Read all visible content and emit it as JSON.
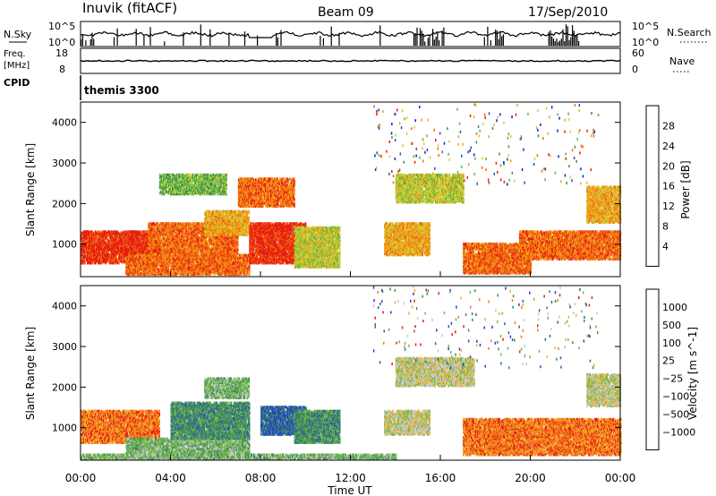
{
  "header": {
    "station": "Inuvik  (fitACF)",
    "beam": "Beam 09",
    "date": "17/Sep/2010"
  },
  "top_panels": {
    "nsky_label": "N.Sky",
    "nsearch_label": "N.Search",
    "nsky_ticks": [
      "10^5",
      "10^0"
    ],
    "nsearch_ticks": [
      "10^5",
      "10^0"
    ],
    "freq_label_1": "Freq.",
    "freq_label_2": "[MHz]",
    "freq_ticks": [
      "18",
      "8"
    ],
    "nave_label": "Nave",
    "nave_ticks": [
      "60",
      "0"
    ],
    "cpid_label": "CPID",
    "cpid_value": "themis 3300"
  },
  "colors": {
    "power": [
      "#0a1ee6",
      "#2f4ea0",
      "#3e8a5a",
      "#5fb646",
      "#c6d43a",
      "#f2a516",
      "#f26a10",
      "#e61e10"
    ],
    "velocity": [
      "#1e3ad2",
      "#2e62a0",
      "#3f8a5a",
      "#6fba44",
      "#c8c8c8",
      "#f2b022",
      "#f27a1e",
      "#e61e10"
    ]
  },
  "chart_data": [
    {
      "type": "heatmap",
      "ylabel": "Slant Range [km]",
      "xlabel": "",
      "colorbar_label": "Power [dB]",
      "colorbar_ticks": [
        "28",
        "24",
        "20",
        "16",
        "12",
        "8",
        "4"
      ],
      "yticks": [
        "1000",
        "2000",
        "3000",
        "4000"
      ],
      "ylim": [
        200,
        4500
      ],
      "xlim": [
        0,
        24
      ],
      "scatter_regions": [
        {
          "t0": 0.0,
          "t1": 3.5,
          "r0": 500,
          "r1": 1300,
          "level": 7
        },
        {
          "t0": 2.0,
          "t1": 7.5,
          "r0": 220,
          "r1": 700,
          "level": 6
        },
        {
          "t0": 3.0,
          "t1": 7.0,
          "r0": 700,
          "r1": 1500,
          "level": 6
        },
        {
          "t0": 5.5,
          "t1": 7.5,
          "r0": 1200,
          "r1": 1800,
          "level": 5
        },
        {
          "t0": 7.5,
          "t1": 10.0,
          "r0": 500,
          "r1": 1500,
          "level": 7
        },
        {
          "t0": 7.0,
          "t1": 9.5,
          "r0": 1900,
          "r1": 2600,
          "level": 6
        },
        {
          "t0": 9.5,
          "t1": 11.5,
          "r0": 400,
          "r1": 1400,
          "level": 4
        },
        {
          "t0": 13.5,
          "t1": 15.5,
          "r0": 700,
          "r1": 1500,
          "level": 5
        },
        {
          "t0": 14.0,
          "t1": 17.0,
          "r0": 2000,
          "r1": 2700,
          "level": 4
        },
        {
          "t0": 17.0,
          "t1": 20.0,
          "r0": 250,
          "r1": 1000,
          "level": 6
        },
        {
          "t0": 19.5,
          "t1": 24.0,
          "r0": 600,
          "r1": 1300,
          "level": 6
        },
        {
          "t0": 22.5,
          "t1": 24.0,
          "r0": 1500,
          "r1": 2400,
          "level": 5
        },
        {
          "t0": 3.5,
          "t1": 6.5,
          "r0": 2200,
          "r1": 2700,
          "level": 3
        }
      ]
    },
    {
      "type": "heatmap",
      "ylabel": "Slant Range [km]",
      "xlabel": "Time UT",
      "colorbar_label": "Velocity [m s^-1]",
      "colorbar_ticks": [
        "1000",
        "500",
        "100",
        "25",
        "−25",
        "−100",
        "−500",
        "−1000"
      ],
      "yticks": [
        "1000",
        "2000",
        "3000",
        "4000"
      ],
      "xticks": [
        "00:00",
        "04:00",
        "08:00",
        "12:00",
        "16:00",
        "20:00",
        "00:00"
      ],
      "ylim": [
        200,
        4500
      ],
      "xlim": [
        0,
        24
      ],
      "scatter_regions": [
        {
          "t0": 0.0,
          "t1": 3.5,
          "r0": 600,
          "r1": 1400,
          "level": 6
        },
        {
          "t0": 2.0,
          "t1": 7.5,
          "r0": 220,
          "r1": 700,
          "level": 3
        },
        {
          "t0": 4.0,
          "t1": 7.5,
          "r0": 700,
          "r1": 1600,
          "level": 2
        },
        {
          "t0": 5.5,
          "t1": 7.5,
          "r0": 1700,
          "r1": 2200,
          "level": 3
        },
        {
          "t0": 8.0,
          "t1": 10.0,
          "r0": 800,
          "r1": 1500,
          "level": 1
        },
        {
          "t0": 9.5,
          "t1": 11.5,
          "r0": 600,
          "r1": 1400,
          "level": 2
        },
        {
          "t0": 14.0,
          "t1": 17.5,
          "r0": 2000,
          "r1": 2700,
          "level": 4
        },
        {
          "t0": 13.5,
          "t1": 15.5,
          "r0": 800,
          "r1": 1400,
          "level": 4
        },
        {
          "t0": 17.0,
          "t1": 24.0,
          "r0": 300,
          "r1": 1200,
          "level": 6
        },
        {
          "t0": 22.5,
          "t1": 24.0,
          "r0": 1500,
          "r1": 2300,
          "level": 4
        },
        {
          "t0": 0.0,
          "t1": 14.0,
          "r0": 200,
          "r1": 320,
          "level": 3
        }
      ]
    }
  ]
}
